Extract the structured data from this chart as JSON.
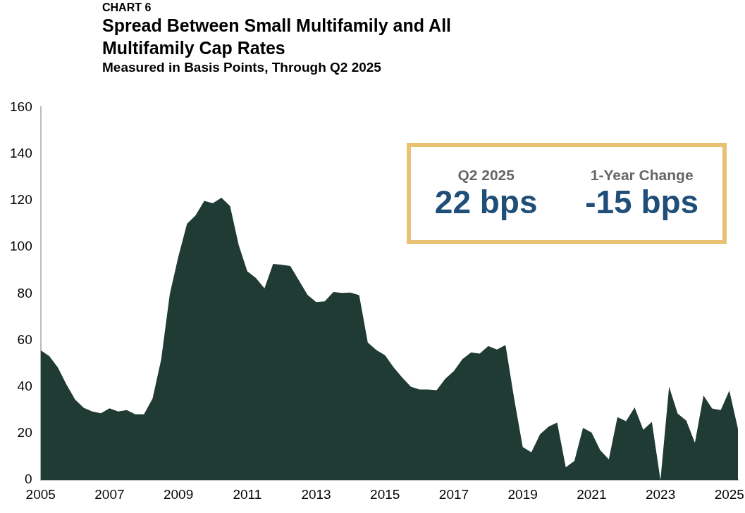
{
  "chart_data": {
    "type": "area",
    "title": "Spread Between Small Multifamily and All Multifamily Cap Rates",
    "subtitle": "Measured in Basis Points, Through Q2 2025",
    "annotations": [
      "CHART 6",
      "Q2 2025",
      "22 bps",
      "1-Year Change",
      "-15 bps"
    ],
    "categories": [
      "2005",
      null,
      null,
      null,
      null,
      null,
      null,
      null,
      "2007",
      null,
      null,
      null,
      null,
      null,
      null,
      null,
      "2009",
      null,
      null,
      null,
      null,
      null,
      null,
      null,
      "2011",
      null,
      null,
      null,
      null,
      null,
      null,
      null,
      "2013",
      null,
      null,
      null,
      null,
      null,
      null,
      null,
      "2015",
      null,
      null,
      null,
      null,
      null,
      null,
      null,
      "2017",
      null,
      null,
      null,
      null,
      null,
      null,
      null,
      "2019",
      null,
      null,
      null,
      null,
      null,
      null,
      null,
      "2021",
      null,
      null,
      null,
      null,
      null,
      null,
      null,
      "2023",
      null,
      null,
      null,
      null,
      null,
      null,
      null,
      "2025",
      null
    ],
    "values": [
      55.7,
      53.2,
      48.3,
      41,
      34.6,
      31,
      29.4,
      28.7,
      30.8,
      29.4,
      30,
      28.2,
      28.2,
      35,
      51.8,
      79.8,
      96,
      110,
      113.6,
      119.8,
      118.8,
      121.2,
      117.6,
      100.9,
      89.6,
      86.7,
      82.3,
      92.8,
      92.4,
      91.9,
      85.7,
      79.5,
      76.4,
      76.7,
      80.7,
      80.3,
      80.5,
      79.3,
      59,
      55.8,
      53.6,
      48.4,
      44,
      40.1,
      38.9,
      38.9,
      38.6,
      43.5,
      46.8,
      51.9,
      54.8,
      54.3,
      57.5,
      56,
      58,
      35,
      14.2,
      11.9,
      19.6,
      22.9,
      24.7,
      5.5,
      8.2,
      22.4,
      20.4,
      12.8,
      8.9,
      27,
      25.3,
      31.2,
      21.6,
      25,
      0,
      40.1,
      28.5,
      25.5,
      16,
      36.3,
      30.7,
      30,
      38.4,
      22
    ],
    "color": "#1f3b33",
    "ylim": [
      0,
      160
    ],
    "yticks": [
      0,
      20,
      40,
      60,
      80,
      100,
      120,
      140,
      160
    ],
    "grid": false
  }
}
